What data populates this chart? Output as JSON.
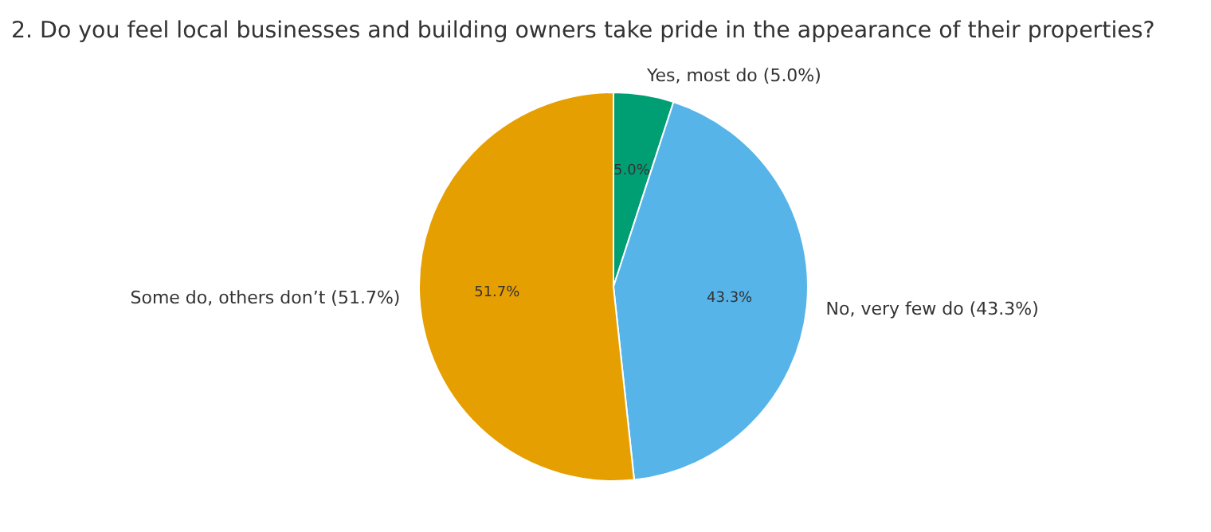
{
  "chart_data": {
    "type": "pie",
    "title": "2. Do you feel local businesses and building owners take pride in the appearance of their properties?",
    "categories": [
      "Yes, most do (5.0%)",
      "No, very few do (43.3%)",
      "Some do, others don’t (51.7%)"
    ],
    "values": [
      5.0,
      43.3,
      51.7
    ],
    "value_labels": [
      "5.0%",
      "43.3%",
      "51.7%"
    ],
    "colors": [
      "#009e73",
      "#56b4e9",
      "#e69f00"
    ],
    "legend": false
  }
}
